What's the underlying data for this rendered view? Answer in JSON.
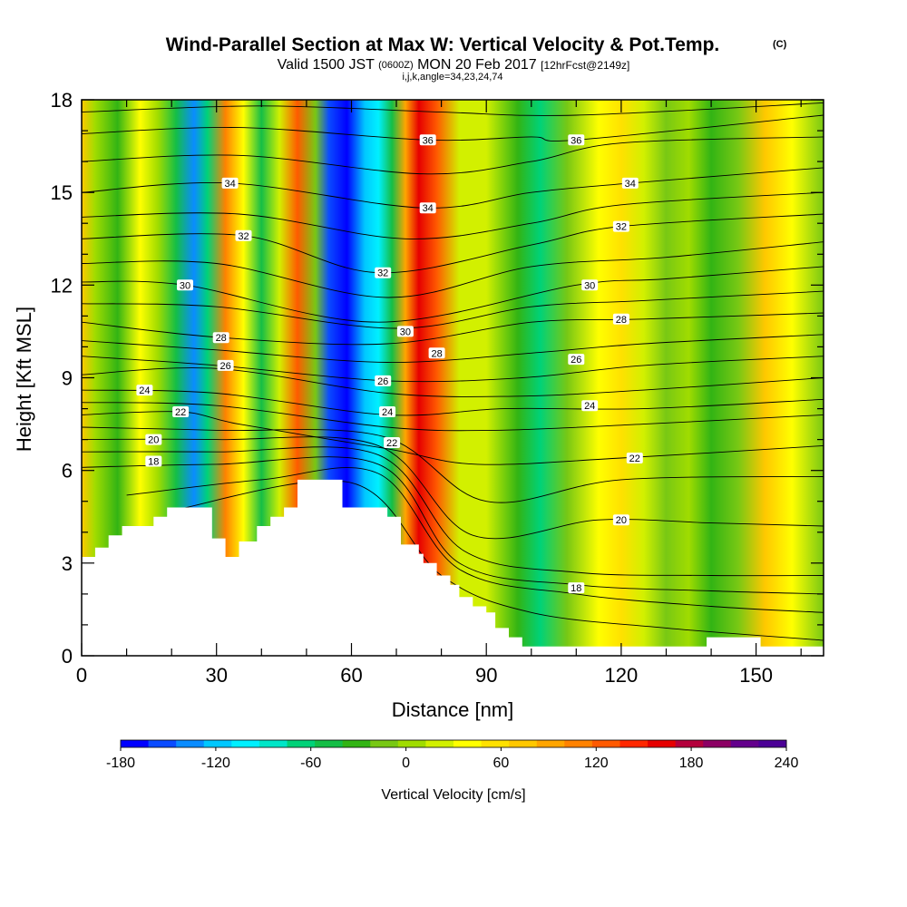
{
  "chart_data": {
    "type": "heatmap",
    "title": "Wind-Parallel Section at Max W: Vertical Velocity & Pot.Temp.",
    "title_mark": "(C)",
    "subtitle": {
      "prefix": "Valid 1500 JST",
      "zulu": "(0600Z)",
      "date": "MON 20 Feb 2017",
      "forecast": "[12hrFcst@2149z]"
    },
    "indices": "i,j,k,angle=34,23,24,74",
    "xlabel": "Distance [nm]",
    "ylabel": "Height [Kft MSL]",
    "xlim": [
      0,
      165
    ],
    "ylim": [
      0,
      18
    ],
    "x_ticks": [
      "0",
      "30",
      "60",
      "90",
      "120",
      "150"
    ],
    "y_ticks": [
      "0",
      "3",
      "6",
      "9",
      "12",
      "15",
      "18"
    ],
    "colorbar": {
      "title": "Vertical Velocity [cm/s]",
      "tick_labels": [
        "-180",
        "-120",
        "-60",
        "0",
        "60",
        "120",
        "180",
        "240"
      ],
      "range": [
        -180,
        240
      ],
      "step": 20,
      "colors": [
        "#0000ff",
        "#0a4bff",
        "#0a8cff",
        "#00c8ff",
        "#00f0ff",
        "#00e6c8",
        "#00d278",
        "#14be46",
        "#32b414",
        "#78c814",
        "#a0dc00",
        "#d2f000",
        "#ffff00",
        "#ffe100",
        "#ffc800",
        "#ffa500",
        "#ff8200",
        "#ff5a00",
        "#ff2800",
        "#e60000",
        "#b4003c",
        "#8c0064",
        "#64008c",
        "#4b0096"
      ]
    },
    "velocity_bands": [
      {
        "x": 0,
        "w": 5
      },
      {
        "x": 3,
        "w": 1
      },
      {
        "x": 8,
        "w": -1
      },
      {
        "x": 13,
        "w": 3
      },
      {
        "x": 17,
        "w": 1
      },
      {
        "x": 21,
        "w": -2
      },
      {
        "x": 25,
        "w": -7
      },
      {
        "x": 28,
        "w": -3
      },
      {
        "x": 32,
        "w": 7
      },
      {
        "x": 36,
        "w": 3
      },
      {
        "x": 40,
        "w": -2
      },
      {
        "x": 44,
        "w": 2
      },
      {
        "x": 48,
        "w": 8
      },
      {
        "x": 52,
        "w": 0
      },
      {
        "x": 55,
        "w": -8
      },
      {
        "x": 59,
        "w": -9
      },
      {
        "x": 63,
        "w": -6
      },
      {
        "x": 66,
        "w": -5
      },
      {
        "x": 69,
        "w": -2
      },
      {
        "x": 72,
        "w": 6
      },
      {
        "x": 75,
        "w": 10
      },
      {
        "x": 79,
        "w": 8
      },
      {
        "x": 84,
        "w": 2
      },
      {
        "x": 90,
        "w": 2
      },
      {
        "x": 97,
        "w": -1
      },
      {
        "x": 102,
        "w": -3
      },
      {
        "x": 108,
        "w": 0
      },
      {
        "x": 115,
        "w": 3
      },
      {
        "x": 120,
        "w": 4
      },
      {
        "x": 125,
        "w": 2
      },
      {
        "x": 130,
        "w": 0
      },
      {
        "x": 135,
        "w": 1
      },
      {
        "x": 140,
        "w": -1
      },
      {
        "x": 146,
        "w": 0
      },
      {
        "x": 152,
        "w": 5
      },
      {
        "x": 158,
        "w": 3
      },
      {
        "x": 165,
        "w": 0
      }
    ],
    "terrain": [
      [
        0,
        3.2
      ],
      [
        3,
        3.5
      ],
      [
        6,
        3.9
      ],
      [
        9,
        4.2
      ],
      [
        16,
        4.5
      ],
      [
        19,
        4.8
      ],
      [
        29,
        3.8
      ],
      [
        32,
        3.2
      ],
      [
        35,
        3.7
      ],
      [
        39,
        4.2
      ],
      [
        42,
        4.5
      ],
      [
        45,
        4.8
      ],
      [
        48,
        5.7
      ],
      [
        58,
        4.8
      ],
      [
        68,
        4.5
      ],
      [
        71,
        3.6
      ],
      [
        75,
        3.3
      ],
      [
        76,
        3.0
      ],
      [
        79,
        2.6
      ],
      [
        82,
        2.3
      ],
      [
        84,
        1.9
      ],
      [
        87,
        1.6
      ],
      [
        90,
        1.4
      ],
      [
        92,
        0.9
      ],
      [
        95,
        0.6
      ],
      [
        98,
        0.3
      ],
      [
        138,
        0.3
      ],
      [
        139,
        0.6
      ],
      [
        150,
        0.6
      ],
      [
        151,
        0.3
      ],
      [
        165,
        0.3
      ]
    ],
    "theta_levels": [
      {
        "theta": 16,
        "label": "",
        "pts": [
          [
            20,
            4.7
          ],
          [
            60,
            5.6
          ],
          [
            80,
            2.6
          ],
          [
            100,
            1.4
          ],
          [
            130,
            0.9
          ],
          [
            165,
            0.5
          ]
        ]
      },
      {
        "theta": 17,
        "label": "",
        "pts": [
          [
            10,
            5.2
          ],
          [
            40,
            5.7
          ],
          [
            66,
            5.9
          ],
          [
            84,
            2.8
          ],
          [
            110,
            2.0
          ],
          [
            140,
            1.6
          ],
          [
            165,
            1.4
          ]
        ]
      },
      {
        "theta": 18,
        "label": "18",
        "lx": 16,
        "ly": 6.3,
        "pts": [
          [
            0,
            6.1
          ],
          [
            30,
            6.2
          ],
          [
            66,
            6.2
          ],
          [
            84,
            3.0
          ],
          [
            110,
            2.3
          ],
          [
            140,
            2.1
          ],
          [
            165,
            2.0
          ]
        ]
      },
      {
        "theta": 19,
        "label": "",
        "pts": [
          [
            0,
            6.6
          ],
          [
            30,
            6.6
          ],
          [
            66,
            6.5
          ],
          [
            85,
            3.4
          ],
          [
            110,
            2.7
          ],
          [
            140,
            2.6
          ],
          [
            165,
            2.6
          ]
        ]
      },
      {
        "theta": 20,
        "label": "20",
        "lx": 16,
        "ly": 7.0,
        "pts": [
          [
            0,
            7.0
          ],
          [
            30,
            7.0
          ],
          [
            66,
            6.8
          ],
          [
            87,
            3.9
          ],
          [
            115,
            4.4
          ],
          [
            140,
            4.3
          ],
          [
            165,
            4.2
          ]
        ]
      },
      {
        "theta": 21,
        "label": "",
        "pts": [
          [
            0,
            7.4
          ],
          [
            30,
            7.3
          ],
          [
            67,
            7.1
          ],
          [
            90,
            5.0
          ],
          [
            120,
            5.7
          ],
          [
            165,
            5.8
          ]
        ]
      },
      {
        "theta": 22,
        "label": "22",
        "lx": 22,
        "ly": 7.9,
        "pts": [
          [
            0,
            7.8
          ],
          [
            22,
            7.9
          ],
          [
            35,
            7.5
          ],
          [
            68,
            6.7
          ],
          [
            88,
            6.2
          ],
          [
            120,
            6.4
          ],
          [
            165,
            6.8
          ]
        ]
      },
      {
        "theta": 23,
        "label": "",
        "pts": [
          [
            0,
            8.2
          ],
          [
            30,
            8.1
          ],
          [
            68,
            7.4
          ],
          [
            92,
            7.3
          ],
          [
            125,
            7.5
          ],
          [
            165,
            7.8
          ]
        ]
      },
      {
        "theta": 24,
        "label": "24",
        "lx": 14,
        "ly": 8.6,
        "pts": [
          [
            0,
            8.6
          ],
          [
            30,
            8.5
          ],
          [
            68,
            7.8
          ],
          [
            94,
            8.0
          ],
          [
            125,
            8.0
          ],
          [
            165,
            8.3
          ]
        ]
      },
      {
        "theta": 25,
        "label": "",
        "pts": [
          [
            0,
            9.1
          ],
          [
            30,
            9.3
          ],
          [
            68,
            8.5
          ],
          [
            96,
            8.4
          ],
          [
            125,
            8.6
          ],
          [
            165,
            9.0
          ]
        ]
      },
      {
        "theta": 26,
        "label": "26",
        "lx": 32,
        "ly": 9.4,
        "pts": [
          [
            0,
            9.7
          ],
          [
            30,
            9.4
          ],
          [
            68,
            8.9
          ],
          [
            98,
            9.0
          ],
          [
            125,
            9.4
          ],
          [
            165,
            9.7
          ]
        ]
      },
      {
        "theta": 27,
        "label": "",
        "pts": [
          [
            0,
            10.2
          ],
          [
            30,
            9.9
          ],
          [
            68,
            9.5
          ],
          [
            100,
            9.8
          ],
          [
            125,
            10.1
          ],
          [
            165,
            10.4
          ]
        ]
      },
      {
        "theta": 28,
        "label": "28",
        "lx": 31,
        "ly": 10.3,
        "pts": [
          [
            0,
            10.8
          ],
          [
            31,
            10.3
          ],
          [
            68,
            10.1
          ],
          [
            100,
            10.8
          ],
          [
            125,
            10.9
          ],
          [
            165,
            11.1
          ]
        ]
      },
      {
        "theta": 29,
        "label": "",
        "pts": [
          [
            0,
            11.4
          ],
          [
            30,
            11.3
          ],
          [
            70,
            10.6
          ],
          [
            100,
            11.3
          ],
          [
            125,
            11.5
          ],
          [
            165,
            11.8
          ]
        ]
      },
      {
        "theta": 30,
        "label": "30",
        "lx": 23,
        "ly": 12.0,
        "pts": [
          [
            0,
            12.1
          ],
          [
            23,
            12.0
          ],
          [
            66,
            10.8
          ],
          [
            110,
            12.0
          ],
          [
            130,
            12.2
          ],
          [
            165,
            12.6
          ]
        ]
      },
      {
        "theta": 31,
        "label": "",
        "pts": [
          [
            0,
            12.7
          ],
          [
            30,
            12.7
          ],
          [
            68,
            11.6
          ],
          [
            100,
            12.6
          ],
          [
            130,
            12.9
          ],
          [
            165,
            13.4
          ]
        ]
      },
      {
        "theta": 32,
        "label": "32",
        "lx": 36,
        "ly": 13.6,
        "pts": [
          [
            0,
            13.5
          ],
          [
            36,
            13.6
          ],
          [
            66,
            12.4
          ],
          [
            100,
            13.3
          ],
          [
            120,
            13.9
          ],
          [
            165,
            14.3
          ]
        ]
      },
      {
        "theta": 33,
        "label": "",
        "pts": [
          [
            0,
            14.2
          ],
          [
            35,
            14.3
          ],
          [
            72,
            13.5
          ],
          [
            100,
            14.0
          ],
          [
            120,
            14.6
          ],
          [
            165,
            15.0
          ]
        ]
      },
      {
        "theta": 34,
        "label": "34",
        "lx": 33,
        "ly": 15.3,
        "pts": [
          [
            0,
            15.0
          ],
          [
            33,
            15.3
          ],
          [
            76,
            14.5
          ],
          [
            100,
            15.0
          ],
          [
            122,
            15.3
          ],
          [
            165,
            15.8
          ]
        ]
      },
      {
        "theta": 35,
        "label": "",
        "pts": [
          [
            0,
            16.0
          ],
          [
            35,
            16.2
          ],
          [
            76,
            15.6
          ],
          [
            100,
            16.0
          ],
          [
            120,
            16.6
          ],
          [
            165,
            16.8
          ]
        ]
      },
      {
        "theta": 36,
        "label": "36",
        "lx": 77,
        "ly": 16.7,
        "pts": [
          [
            0,
            16.9
          ],
          [
            35,
            17.1
          ],
          [
            77,
            16.7
          ],
          [
            100,
            16.8
          ],
          [
            110,
            16.7
          ],
          [
            165,
            17.5
          ]
        ]
      },
      {
        "theta": 37,
        "label": "",
        "pts": [
          [
            0,
            17.6
          ],
          [
            40,
            17.8
          ],
          [
            80,
            17.6
          ],
          [
            110,
            17.5
          ],
          [
            165,
            17.9
          ]
        ]
      }
    ],
    "extra_labels": [
      {
        "text": "34",
        "x": 77,
        "y": 14.5
      },
      {
        "text": "32",
        "x": 67,
        "y": 12.4
      },
      {
        "text": "30",
        "x": 72,
        "y": 10.5
      },
      {
        "text": "28",
        "x": 79,
        "y": 9.8
      },
      {
        "text": "26",
        "x": 67,
        "y": 8.9
      },
      {
        "text": "24",
        "x": 68,
        "y": 7.9
      },
      {
        "text": "22",
        "x": 69,
        "y": 6.9
      },
      {
        "text": "36",
        "x": 110,
        "y": 16.7
      },
      {
        "text": "34",
        "x": 122,
        "y": 15.3
      },
      {
        "text": "32",
        "x": 120,
        "y": 13.9
      },
      {
        "text": "30",
        "x": 113,
        "y": 12.0
      },
      {
        "text": "28",
        "x": 120,
        "y": 10.9
      },
      {
        "text": "26",
        "x": 110,
        "y": 9.6
      },
      {
        "text": "24",
        "x": 113,
        "y": 8.1
      },
      {
        "text": "22",
        "x": 123,
        "y": 6.4
      },
      {
        "text": "20",
        "x": 120,
        "y": 4.4
      },
      {
        "text": "18",
        "x": 110,
        "y": 2.2
      }
    ],
    "grid": false
  }
}
